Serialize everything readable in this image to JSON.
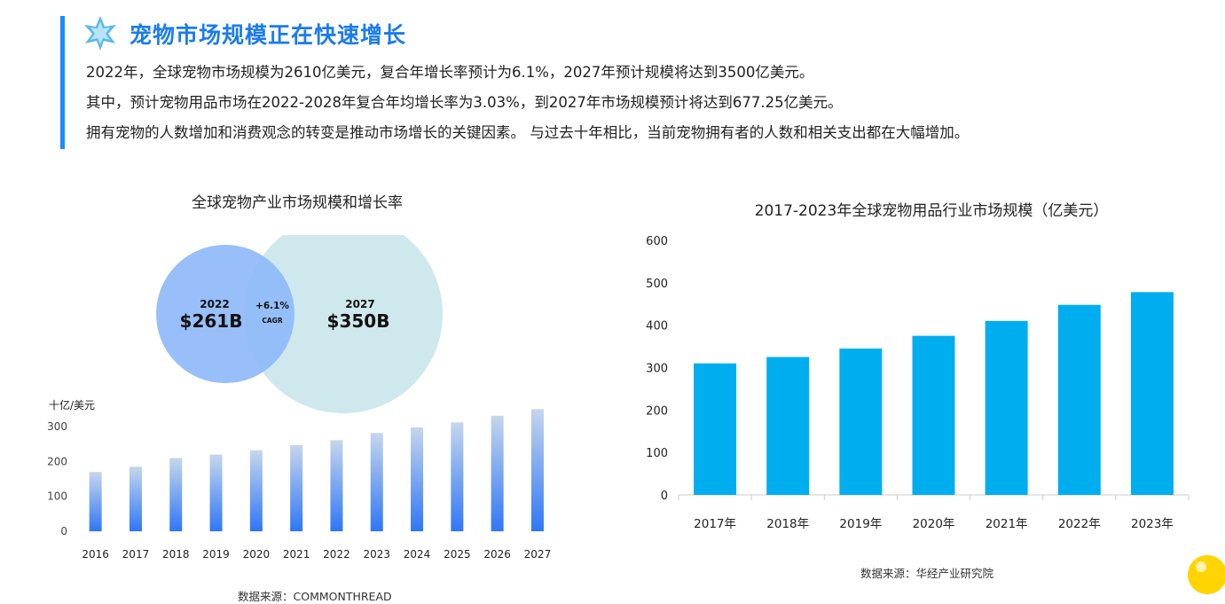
{
  "header": {
    "title": "宠物市场规模正在快速增长",
    "paragraphs": [
      "2022年，全球宠物市场规模为2610亿美元，复合年增长率预计为6.1%，2027年预计规模将达到3500亿美元。",
      "其中，预计宠物用品市场在2022-2028年复合年均增长率为3.03%，到2027年市场规模预计将达到677.25亿美元。",
      "拥有宠物的人数增加和消费观念的转变是推动市场增长的关键因素。 与过去十年相比，当前宠物拥有者的人数和相关支出都在大幅增加。"
    ],
    "icon": "star-icon",
    "accent_color": "#1a8cff",
    "title_color": "#1a7bf0"
  },
  "left_panel": {
    "title": "全球宠物产业市场规模和增长率",
    "venn": {
      "left_year": "2022",
      "left_value": "$261B",
      "right_year": "2027",
      "right_value": "$350B",
      "overlap_value": "+6.1%",
      "overlap_label": "CAGR",
      "left_color": "#8fbaf8",
      "right_color": "#cfe8ee"
    },
    "source": "数据来源：COMMONTHREAD"
  },
  "right_panel": {
    "title": "2017-2023年全球宠物用品行业市场规模（亿美元）",
    "source": "数据来源：华经产业研究院"
  },
  "chart_data": [
    {
      "type": "bar",
      "title": "",
      "ylabel": "十亿/美元",
      "xlabel": "",
      "categories": [
        "2016",
        "2017",
        "2018",
        "2019",
        "2020",
        "2021",
        "2022",
        "2023",
        "2024",
        "2025",
        "2026",
        "2027"
      ],
      "values": [
        170,
        185,
        210,
        220,
        232,
        247,
        261,
        282,
        298,
        312,
        331,
        350
      ],
      "ylim": [
        0,
        300
      ],
      "yticks": [
        0,
        100,
        200,
        300
      ],
      "grid": false,
      "colors": {
        "top": "#c6d6ec",
        "bottom": "#2f77f6"
      }
    },
    {
      "type": "bar",
      "title": "2017-2023年全球宠物用品行业市场规模（亿美元）",
      "xlabel": "",
      "ylabel": "",
      "categories": [
        "2017年",
        "2018年",
        "2019年",
        "2020年",
        "2021年",
        "2022年",
        "2023年"
      ],
      "values": [
        310,
        325,
        345,
        375,
        410,
        448,
        478
      ],
      "ylim": [
        0,
        600
      ],
      "yticks": [
        0,
        100,
        200,
        300,
        400,
        500,
        600
      ],
      "grid": false,
      "colors": {
        "bar": "#00aeef"
      }
    }
  ],
  "icons": {
    "corner": "lightbulb-icon"
  }
}
